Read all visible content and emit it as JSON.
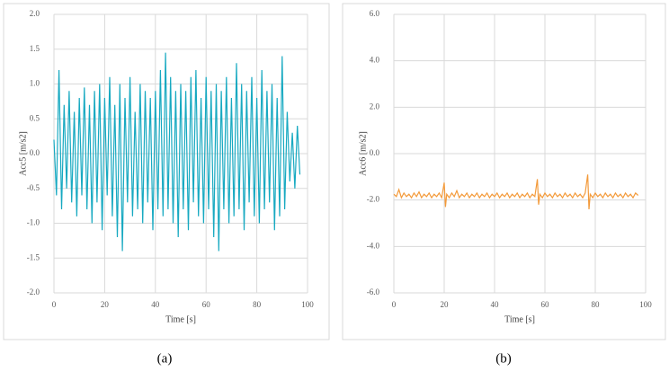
{
  "chart_data": [
    {
      "type": "line",
      "ylabel": "Acc5 [m/s2]",
      "xlabel": "Time [s]",
      "caption": "(a)",
      "color": "#17a9c1",
      "grid": true,
      "xlim": [
        0,
        100
      ],
      "xticks": [
        0,
        20,
        40,
        60,
        80,
        100
      ],
      "ylim": [
        -2,
        2
      ],
      "yticks": [
        {
          "value": 2,
          "label": "2.0"
        },
        {
          "value": 1.5,
          "label": "1.5"
        },
        {
          "value": 1,
          "label": "1.0"
        },
        {
          "value": 0.5,
          "label": "0.5"
        },
        {
          "value": 0,
          "label": "0.0"
        },
        {
          "value": -0.5,
          "label": "-0.5"
        },
        {
          "value": -1,
          "label": "-1.0"
        },
        {
          "value": -1.5,
          "label": "-1.5"
        },
        {
          "value": -2,
          "label": "-2.0"
        }
      ],
      "x": [
        0,
        1,
        2,
        3,
        4,
        5,
        6,
        7,
        8,
        9,
        10,
        11,
        12,
        13,
        14,
        15,
        16,
        17,
        18,
        19,
        20,
        21,
        22,
        23,
        24,
        25,
        26,
        27,
        28,
        29,
        30,
        31,
        32,
        33,
        34,
        35,
        36,
        37,
        38,
        39,
        40,
        41,
        42,
        43,
        44,
        45,
        46,
        47,
        48,
        49,
        50,
        51,
        52,
        53,
        54,
        55,
        56,
        57,
        58,
        59,
        60,
        61,
        62,
        63,
        64,
        65,
        66,
        67,
        68,
        69,
        70,
        71,
        72,
        73,
        74,
        75,
        76,
        77,
        78,
        79,
        80,
        81,
        82,
        83,
        84,
        85,
        86,
        87,
        88,
        89,
        90,
        91,
        92,
        93,
        94,
        95,
        96,
        97
      ],
      "values": [
        0.2,
        -0.6,
        1.2,
        -0.8,
        0.7,
        -0.5,
        0.9,
        -0.7,
        0.6,
        -0.9,
        0.8,
        -0.6,
        0.95,
        -0.8,
        0.7,
        -1.0,
        0.9,
        -0.7,
        1.0,
        -1.1,
        0.8,
        -0.6,
        1.1,
        -0.9,
        0.7,
        -1.2,
        1.0,
        -1.4,
        0.8,
        -0.7,
        1.1,
        -0.9,
        0.6,
        -0.8,
        1.0,
        -1.0,
        0.9,
        -0.7,
        0.8,
        -1.1,
        0.9,
        -0.8,
        1.2,
        -0.9,
        1.45,
        -0.8,
        1.1,
        -1.0,
        0.9,
        -1.2,
        1.0,
        -0.8,
        0.9,
        -1.1,
        1.1,
        -0.7,
        1.2,
        -0.9,
        0.8,
        -1.0,
        1.1,
        -0.8,
        0.9,
        -1.2,
        1.0,
        -1.4,
        0.9,
        -0.8,
        1.1,
        -1.0,
        0.8,
        -0.9,
        1.3,
        -0.8,
        1.0,
        -1.1,
        0.9,
        -0.7,
        1.1,
        -0.9,
        0.8,
        -1.0,
        1.2,
        -0.8,
        0.9,
        -0.7,
        1.0,
        -1.1,
        0.8,
        -0.9,
        1.4,
        -0.8,
        0.6,
        -0.4,
        0.3,
        -0.5,
        0.4,
        -0.3
      ]
    },
    {
      "type": "line",
      "ylabel": "Acc6 [m/s2]",
      "xlabel": "Time [s]",
      "caption": "(b)",
      "color": "#f39a3a",
      "grid": true,
      "xlim": [
        0,
        100
      ],
      "xticks": [
        0,
        20,
        40,
        60,
        80,
        100
      ],
      "ylim": [
        -6,
        6
      ],
      "yticks": [
        {
          "value": 6,
          "label": "6.0"
        },
        {
          "value": 4,
          "label": "4.0"
        },
        {
          "value": 2,
          "label": "2.0"
        },
        {
          "value": 0,
          "label": "0.0"
        },
        {
          "value": -2,
          "label": "-2.0"
        },
        {
          "value": -4,
          "label": "-4.0"
        },
        {
          "value": -6,
          "label": "-6.0"
        }
      ],
      "x": [
        0,
        1,
        2,
        3,
        4,
        5,
        6,
        7,
        8,
        9,
        10,
        11,
        12,
        13,
        14,
        15,
        16,
        17,
        18,
        19,
        20,
        20.5,
        21,
        22,
        23,
        24,
        25,
        26,
        27,
        28,
        29,
        30,
        31,
        32,
        33,
        34,
        35,
        36,
        37,
        38,
        39,
        40,
        41,
        42,
        43,
        44,
        45,
        46,
        47,
        48,
        49,
        50,
        51,
        52,
        53,
        54,
        55,
        56,
        57,
        57.5,
        58,
        59,
        60,
        61,
        62,
        63,
        64,
        65,
        66,
        67,
        68,
        69,
        70,
        71,
        72,
        73,
        74,
        75,
        76,
        77,
        77.5,
        78,
        79,
        80,
        81,
        82,
        83,
        84,
        85,
        86,
        87,
        88,
        89,
        90,
        91,
        92,
        93,
        94,
        95,
        96,
        97
      ],
      "values": [
        -1.75,
        -1.85,
        -1.55,
        -1.9,
        -1.7,
        -1.85,
        -1.75,
        -1.9,
        -1.7,
        -1.85,
        -1.65,
        -1.9,
        -1.75,
        -1.85,
        -1.7,
        -1.9,
        -1.75,
        -1.85,
        -1.7,
        -1.9,
        -1.25,
        -2.3,
        -1.75,
        -1.9,
        -1.7,
        -1.85,
        -1.6,
        -1.9,
        -1.75,
        -1.85,
        -1.7,
        -1.9,
        -1.75,
        -1.85,
        -1.7,
        -1.9,
        -1.75,
        -1.85,
        -1.7,
        -1.9,
        -1.75,
        -1.85,
        -1.7,
        -1.9,
        -1.75,
        -1.85,
        -1.7,
        -1.9,
        -1.75,
        -1.85,
        -1.7,
        -1.9,
        -1.75,
        -1.85,
        -1.7,
        -1.9,
        -1.75,
        -1.85,
        -1.1,
        -2.2,
        -1.75,
        -1.9,
        -1.7,
        -1.85,
        -1.75,
        -1.9,
        -1.7,
        -1.85,
        -1.75,
        -1.9,
        -1.7,
        -1.85,
        -1.75,
        -1.9,
        -1.7,
        -1.85,
        -1.75,
        -1.9,
        -1.7,
        -0.9,
        -2.4,
        -1.75,
        -1.9,
        -1.7,
        -1.85,
        -1.75,
        -1.9,
        -1.7,
        -1.85,
        -1.75,
        -1.9,
        -1.7,
        -1.85,
        -1.75,
        -1.9,
        -1.7,
        -1.85,
        -1.75,
        -1.9,
        -1.7,
        -1.8
      ]
    }
  ]
}
